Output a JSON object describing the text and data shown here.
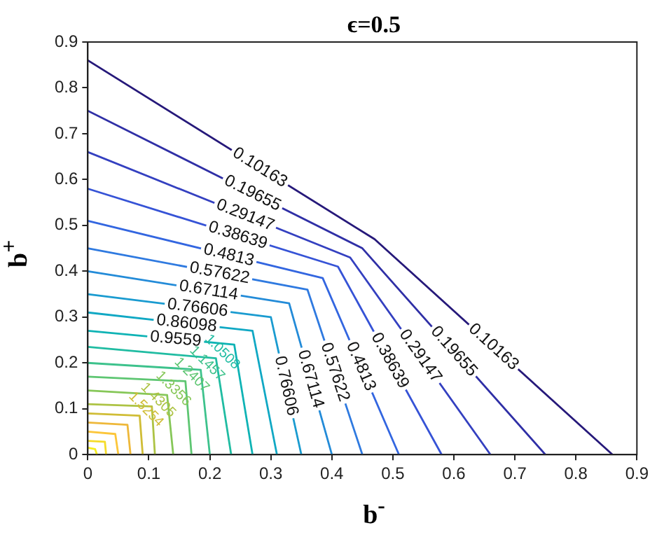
{
  "chart_data": {
    "type": "line",
    "title": "ϵ=0.5",
    "xlabel": "b$^{-}$",
    "ylabel": "b$^{+}$",
    "xlim": [
      0,
      0.9
    ],
    "ylim": [
      0,
      0.9
    ],
    "xticks": [
      0,
      0.1,
      0.2,
      0.3,
      0.4,
      0.5,
      0.6,
      0.7,
      0.8,
      0.9
    ],
    "yticks": [
      0,
      0.1,
      0.2,
      0.3,
      0.4,
      0.5,
      0.6,
      0.7,
      0.8,
      0.9
    ],
    "series": [
      {
        "name": "0.10163",
        "color": "#26197a",
        "x": [
          0,
          0.47,
          0.86
        ],
        "values": [
          0.86,
          0.47,
          0
        ]
      },
      {
        "name": "0.19655",
        "color": "#2f2fa6",
        "x": [
          0,
          0.45,
          0.75
        ],
        "values": [
          0.75,
          0.45,
          0
        ]
      },
      {
        "name": "0.29147",
        "color": "#3440c0",
        "x": [
          0,
          0.43,
          0.66
        ],
        "values": [
          0.66,
          0.43,
          0
        ]
      },
      {
        "name": "0.38639",
        "color": "#3653d6",
        "x": [
          0,
          0.41,
          0.58
        ],
        "values": [
          0.58,
          0.41,
          0
        ]
      },
      {
        "name": "0.4813",
        "color": "#3366e0",
        "x": [
          0,
          0.385,
          0.51
        ],
        "values": [
          0.51,
          0.385,
          0
        ]
      },
      {
        "name": "0.57622",
        "color": "#2f7ae0",
        "x": [
          0,
          0.36,
          0.45
        ],
        "values": [
          0.45,
          0.36,
          0
        ]
      },
      {
        "name": "0.67114",
        "color": "#238bd8",
        "x": [
          0,
          0.33,
          0.4
        ],
        "values": [
          0.4,
          0.33,
          0
        ]
      },
      {
        "name": "0.76606",
        "color": "#1a9bd0",
        "x": [
          0,
          0.3,
          0.35
        ],
        "values": [
          0.35,
          0.3,
          0
        ]
      },
      {
        "name": "0.86098",
        "color": "#10a8c4",
        "x": [
          0,
          0.27,
          0.31
        ],
        "values": [
          0.31,
          0.27,
          0
        ]
      },
      {
        "name": "0.9559",
        "color": "#0fb3b5",
        "x": [
          0,
          0.24,
          0.27
        ],
        "values": [
          0.27,
          0.24,
          0
        ]
      },
      {
        "name": "1.0508",
        "color": "#20bca2",
        "x": [
          0,
          0.21,
          0.235
        ],
        "values": [
          0.235,
          0.21,
          0
        ]
      },
      {
        "name": "1.1457",
        "color": "#3dc28c",
        "x": [
          0,
          0.185,
          0.2
        ],
        "values": [
          0.2,
          0.185,
          0
        ]
      },
      {
        "name": "1.2407",
        "color": "#5ec672",
        "x": [
          0,
          0.16,
          0.17
        ],
        "values": [
          0.17,
          0.16,
          0
        ]
      },
      {
        "name": "1.3356",
        "color": "#86c758",
        "x": [
          0,
          0.13,
          0.14
        ],
        "values": [
          0.14,
          0.13,
          0
        ]
      },
      {
        "name": "1.4305",
        "color": "#adc344",
        "x": [
          0,
          0.105,
          0.11
        ],
        "values": [
          0.11,
          0.105,
          0
        ]
      },
      {
        "name": "1.5254",
        "color": "#d0bd36",
        "x": [
          0,
          0.085,
          0.09
        ],
        "values": [
          0.09,
          0.085,
          0
        ]
      },
      {
        "color": "#eeb83a",
        "x": [
          0,
          0.065,
          0.07
        ],
        "values": [
          0.07,
          0.065,
          0
        ]
      },
      {
        "color": "#fcc63a",
        "x": [
          0,
          0.045,
          0.05
        ],
        "values": [
          0.05,
          0.045,
          0
        ]
      },
      {
        "color": "#f5dc2a",
        "x": [
          0,
          0.028,
          0.03
        ],
        "values": [
          0.03,
          0.028,
          0
        ]
      },
      {
        "color": "#f5ee1e",
        "x": [
          0,
          0.012,
          0.015
        ],
        "values": [
          0.015,
          0.012,
          0
        ]
      }
    ]
  }
}
